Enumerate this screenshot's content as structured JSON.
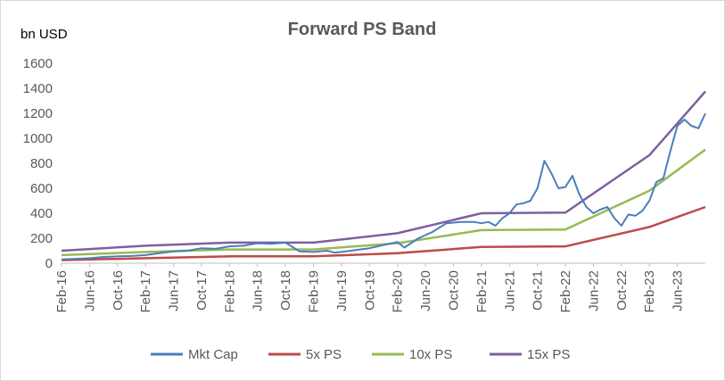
{
  "chart_data": {
    "type": "line",
    "title": "Forward PS Band",
    "unit_label": "bn USD",
    "xlabel": "",
    "ylabel": "",
    "ylim": [
      0,
      1600
    ],
    "yticks": [
      0,
      200,
      400,
      600,
      800,
      1000,
      1200,
      1400,
      1600
    ],
    "xrange": [
      "2016-02",
      "2023-10"
    ],
    "xtick_labels": [
      "Feb-16",
      "Jun-16",
      "Oct-16",
      "Feb-17",
      "Jun-17",
      "Oct-17",
      "Feb-18",
      "Jun-18",
      "Oct-18",
      "Feb-19",
      "Jun-19",
      "Oct-19",
      "Feb-20",
      "Jun-20",
      "Oct-20",
      "Feb-21",
      "Jun-21",
      "Oct-21",
      "Feb-22",
      "Jun-22",
      "Oct-22",
      "Feb-23",
      "Jun-23"
    ],
    "grid": false,
    "legend_position": "bottom",
    "series": [
      {
        "name": "Mkt Cap",
        "color": "#4a7ebb",
        "points": [
          [
            "2016-02",
            30
          ],
          [
            "2016-04",
            35
          ],
          [
            "2016-06",
            40
          ],
          [
            "2016-08",
            50
          ],
          [
            "2016-10",
            55
          ],
          [
            "2016-12",
            58
          ],
          [
            "2017-02",
            65
          ],
          [
            "2017-04",
            80
          ],
          [
            "2017-06",
            95
          ],
          [
            "2017-08",
            100
          ],
          [
            "2017-10",
            120
          ],
          [
            "2017-12",
            115
          ],
          [
            "2018-02",
            135
          ],
          [
            "2018-04",
            140
          ],
          [
            "2018-06",
            160
          ],
          [
            "2018-08",
            155
          ],
          [
            "2018-10",
            165
          ],
          [
            "2018-12",
            95
          ],
          [
            "2019-02",
            90
          ],
          [
            "2019-04",
            100
          ],
          [
            "2019-05",
            85
          ],
          [
            "2019-06",
            90
          ],
          [
            "2019-08",
            105
          ],
          [
            "2019-10",
            120
          ],
          [
            "2019-12",
            145
          ],
          [
            "2020-02",
            170
          ],
          [
            "2020-03",
            125
          ],
          [
            "2020-05",
            200
          ],
          [
            "2020-07",
            250
          ],
          [
            "2020-09",
            320
          ],
          [
            "2020-11",
            330
          ],
          [
            "2021-01",
            330
          ],
          [
            "2021-02",
            320
          ],
          [
            "2021-03",
            330
          ],
          [
            "2021-04",
            300
          ],
          [
            "2021-05",
            360
          ],
          [
            "2021-06",
            400
          ],
          [
            "2021-07",
            470
          ],
          [
            "2021-08",
            480
          ],
          [
            "2021-09",
            500
          ],
          [
            "2021-10",
            600
          ],
          [
            "2021-11",
            820
          ],
          [
            "2021-12",
            720
          ],
          [
            "2022-01",
            600
          ],
          [
            "2022-02",
            610
          ],
          [
            "2022-03",
            700
          ],
          [
            "2022-04",
            550
          ],
          [
            "2022-05",
            450
          ],
          [
            "2022-06",
            400
          ],
          [
            "2022-07",
            430
          ],
          [
            "2022-08",
            450
          ],
          [
            "2022-09",
            360
          ],
          [
            "2022-10",
            300
          ],
          [
            "2022-11",
            390
          ],
          [
            "2022-12",
            380
          ],
          [
            "2023-01",
            420
          ],
          [
            "2023-02",
            500
          ],
          [
            "2023-03",
            650
          ],
          [
            "2023-04",
            680
          ],
          [
            "2023-05",
            900
          ],
          [
            "2023-06",
            1100
          ],
          [
            "2023-07",
            1150
          ],
          [
            "2023-08",
            1100
          ],
          [
            "2023-09",
            1080
          ],
          [
            "2023-10",
            1200
          ]
        ]
      },
      {
        "name": "5x PS",
        "color": "#be4b48",
        "points": [
          [
            "2016-02",
            25
          ],
          [
            "2017-02",
            40
          ],
          [
            "2018-02",
            55
          ],
          [
            "2019-02",
            55
          ],
          [
            "2020-02",
            80
          ],
          [
            "2021-02",
            130
          ],
          [
            "2022-02",
            135
          ],
          [
            "2023-02",
            290
          ],
          [
            "2023-10",
            450
          ]
        ]
      },
      {
        "name": "10x PS",
        "color": "#98b954",
        "points": [
          [
            "2016-02",
            65
          ],
          [
            "2017-02",
            90
          ],
          [
            "2018-02",
            110
          ],
          [
            "2019-02",
            110
          ],
          [
            "2020-02",
            160
          ],
          [
            "2021-02",
            265
          ],
          [
            "2022-02",
            270
          ],
          [
            "2023-02",
            580
          ],
          [
            "2023-10",
            910
          ]
        ]
      },
      {
        "name": "15x PS",
        "color": "#7d60a0",
        "points": [
          [
            "2016-02",
            100
          ],
          [
            "2017-02",
            140
          ],
          [
            "2018-02",
            165
          ],
          [
            "2019-02",
            165
          ],
          [
            "2020-02",
            240
          ],
          [
            "2021-02",
            400
          ],
          [
            "2022-02",
            405
          ],
          [
            "2023-02",
            865
          ],
          [
            "2023-10",
            1375
          ]
        ]
      }
    ]
  }
}
